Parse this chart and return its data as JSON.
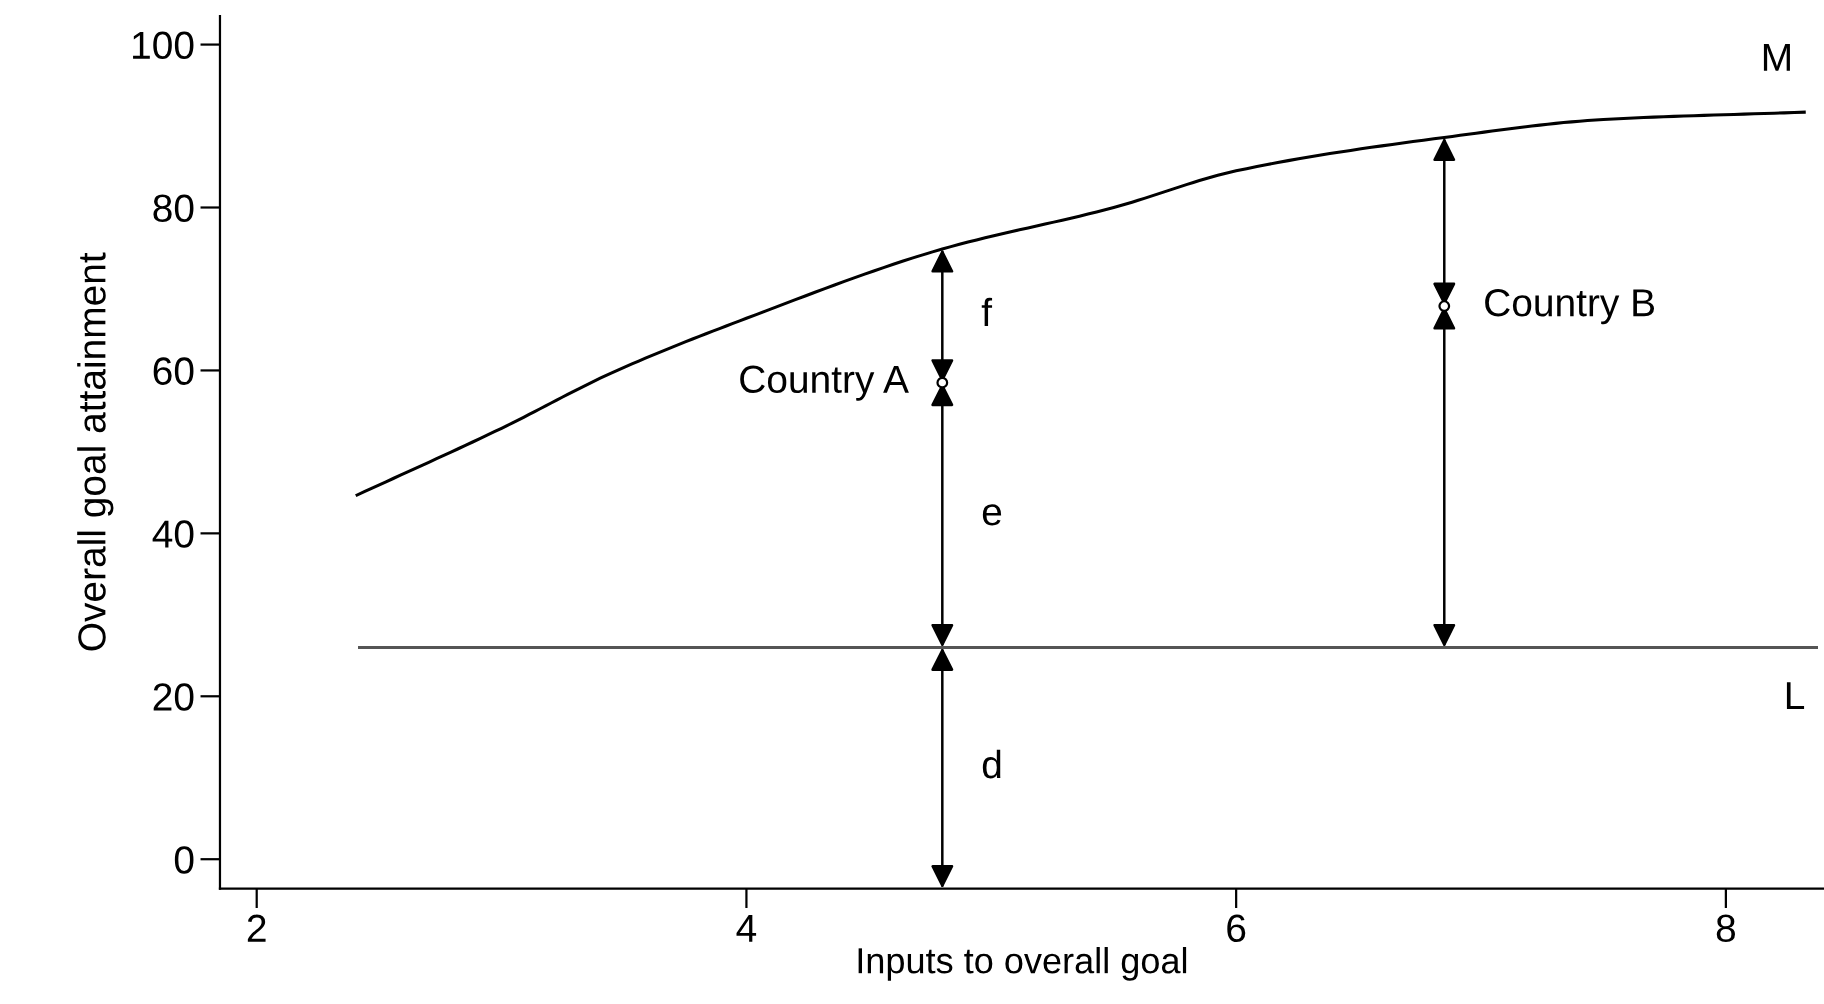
{
  "chart_data": {
    "type": "line",
    "xlabel": "Inputs to overall goal",
    "ylabel": "Overall goal attainment",
    "xlim": [
      1.85,
      8.4
    ],
    "ylim": [
      -3.6,
      103.5
    ],
    "xticks": [
      2,
      4,
      6,
      8
    ],
    "yticks": [
      0,
      20,
      40,
      60,
      80,
      100
    ],
    "grid": false,
    "legend": false,
    "line_style": "solid",
    "series": [
      {
        "color": "#000000",
        "x": [
          2.41,
          3.0,
          3.45,
          4.0,
          4.8,
          5.5,
          6.0,
          6.85,
          7.5,
          8.32
        ],
        "values": [
          44.7,
          52.9,
          59.7,
          66.4,
          74.9,
          80.0,
          84.5,
          88.6,
          90.8,
          91.7
        ]
      },
      {
        "color": "#555555",
        "x": [
          2.42,
          8.37
        ],
        "values": [
          26,
          26
        ]
      },
      {
        "type": "scatter",
        "color": "#000000",
        "x": [
          4.8,
          6.85
        ],
        "values": [
          58.5,
          67.9
        ]
      }
    ],
    "annotations": [
      {
        "text": "M",
        "x": 8.32,
        "y": 91.7
      },
      {
        "text": "L",
        "x": 8.37,
        "y": 26
      },
      "f",
      "e",
      "d",
      {
        "text": "Country A",
        "x": 4.8,
        "y": 58.5
      },
      {
        "text": "Country B",
        "x": 6.85,
        "y": 67.9
      }
    ]
  }
}
